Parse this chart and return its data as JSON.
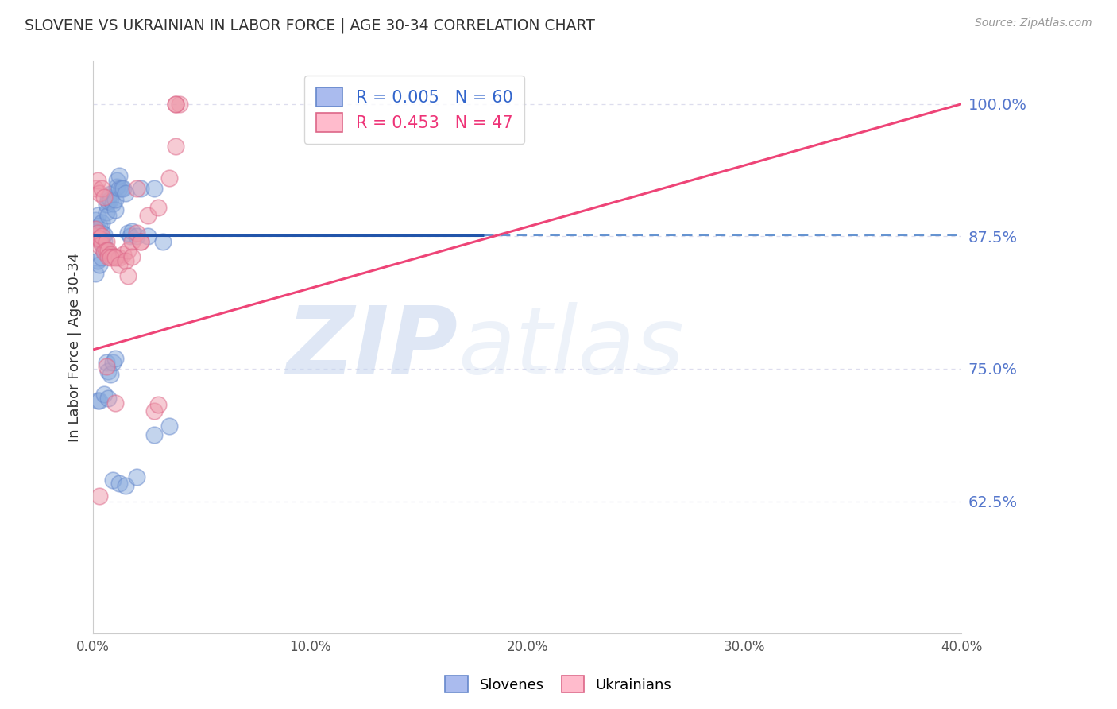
{
  "title": "SLOVENE VS UKRAINIAN IN LABOR FORCE | AGE 30-34 CORRELATION CHART",
  "source": "Source: ZipAtlas.com",
  "ylabel": "In Labor Force | Age 30-34",
  "xlim": [
    0.0,
    0.4
  ],
  "ylim": [
    0.5,
    1.04
  ],
  "xtick_labels": [
    "0.0%",
    "",
    "",
    "",
    "",
    "10.0%",
    "",
    "",
    "",
    "",
    "20.0%",
    "",
    "",
    "",
    "",
    "30.0%",
    "",
    "",
    "",
    "",
    "40.0%"
  ],
  "xtick_values": [
    0.0,
    0.02,
    0.04,
    0.06,
    0.08,
    0.1,
    0.12,
    0.14,
    0.16,
    0.18,
    0.2,
    0.22,
    0.24,
    0.26,
    0.28,
    0.3,
    0.32,
    0.34,
    0.36,
    0.38,
    0.4
  ],
  "ytick_labels": [
    "100.0%",
    "87.5%",
    "75.0%",
    "62.5%"
  ],
  "ytick_values": [
    1.0,
    0.875,
    0.75,
    0.625
  ],
  "blue_line_x": [
    0.0,
    0.18
  ],
  "blue_line_y": [
    0.876,
    0.876
  ],
  "dashed_line_x": [
    0.18,
    0.4
  ],
  "dashed_line_y": [
    0.876,
    0.876
  ],
  "pink_line_x": [
    0.0,
    0.4
  ],
  "pink_line_y": [
    0.768,
    1.0
  ],
  "hline_color": "#5588cc",
  "watermark_zip": "ZIP",
  "watermark_atlas": "atlas",
  "background_color": "#ffffff",
  "scatter_blue_color": "#88aadd",
  "scatter_pink_color": "#ee99aa",
  "blue_line_color": "#2255aa",
  "pink_line_color": "#ee4477",
  "title_color": "#333333",
  "axis_label_color": "#5577cc",
  "grid_color": "#ddddee",
  "blue_x": [
    0.001,
    0.001,
    0.001,
    0.002,
    0.002,
    0.002,
    0.003,
    0.003,
    0.003,
    0.004,
    0.004,
    0.004,
    0.005,
    0.005,
    0.005,
    0.006,
    0.006,
    0.007,
    0.007,
    0.007,
    0.008,
    0.008,
    0.009,
    0.01,
    0.01,
    0.011,
    0.011,
    0.012,
    0.012,
    0.013,
    0.014,
    0.015,
    0.016,
    0.017,
    0.018,
    0.02,
    0.022,
    0.025,
    0.028,
    0.032,
    0.001,
    0.002,
    0.003,
    0.004,
    0.005,
    0.006,
    0.007,
    0.008,
    0.009,
    0.01,
    0.002,
    0.003,
    0.005,
    0.007,
    0.009,
    0.012,
    0.015,
    0.02,
    0.028,
    0.035
  ],
  "blue_y": [
    0.876,
    0.882,
    0.89,
    0.875,
    0.882,
    0.895,
    0.872,
    0.879,
    0.885,
    0.87,
    0.878,
    0.888,
    0.865,
    0.871,
    0.877,
    0.898,
    0.905,
    0.895,
    0.908,
    0.912,
    0.915,
    0.91,
    0.906,
    0.9,
    0.91,
    0.922,
    0.928,
    0.92,
    0.932,
    0.92,
    0.92,
    0.916,
    0.878,
    0.875,
    0.88,
    0.875,
    0.92,
    0.875,
    0.92,
    0.87,
    0.84,
    0.852,
    0.848,
    0.855,
    0.862,
    0.756,
    0.748,
    0.745,
    0.756,
    0.76,
    0.72,
    0.72,
    0.726,
    0.722,
    0.645,
    0.642,
    0.64,
    0.648,
    0.688,
    0.696
  ],
  "pink_x": [
    0.001,
    0.001,
    0.002,
    0.002,
    0.003,
    0.003,
    0.004,
    0.004,
    0.005,
    0.006,
    0.006,
    0.007,
    0.008,
    0.009,
    0.01,
    0.012,
    0.014,
    0.016,
    0.018,
    0.02,
    0.025,
    0.03,
    0.035,
    0.038,
    0.04,
    0.001,
    0.002,
    0.003,
    0.004,
    0.005,
    0.007,
    0.008,
    0.01,
    0.012,
    0.015,
    0.018,
    0.022,
    0.028,
    0.016,
    0.022,
    0.003,
    0.006,
    0.01,
    0.02,
    0.03,
    0.038,
    0.038
  ],
  "pink_y": [
    0.875,
    0.882,
    0.872,
    0.878,
    0.866,
    0.873,
    0.868,
    0.875,
    0.86,
    0.87,
    0.862,
    0.862,
    0.858,
    0.856,
    0.856,
    0.855,
    0.858,
    0.862,
    0.87,
    0.878,
    0.895,
    0.902,
    0.93,
    0.96,
    1.0,
    0.92,
    0.928,
    0.916,
    0.92,
    0.912,
    0.856,
    0.855,
    0.855,
    0.848,
    0.852,
    0.856,
    0.87,
    0.71,
    0.838,
    0.87,
    0.63,
    0.752,
    0.718,
    0.92,
    0.716,
    1.0,
    1.0
  ]
}
